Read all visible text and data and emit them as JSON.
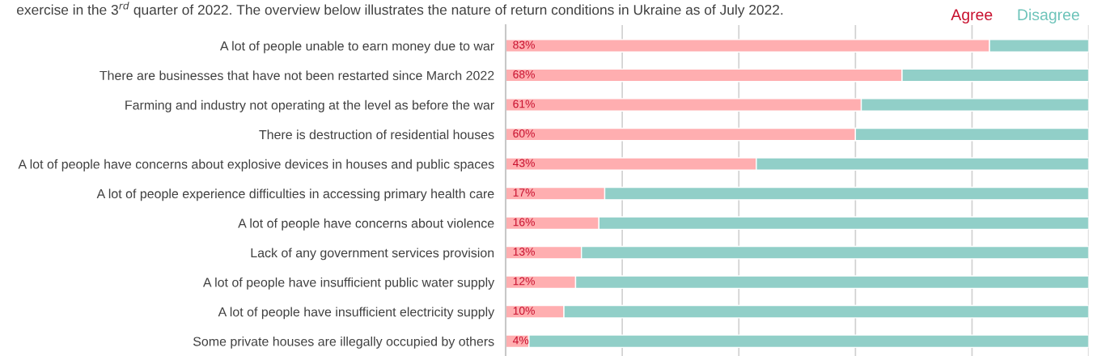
{
  "chart_data": {
    "type": "bar",
    "orientation": "horizontal",
    "stacked": true,
    "subtitle": "exercise in the 3$^{rd}$ quarter of 2022. The overview below illustrates the nature of return conditions in Ukraine as of July 2022.",
    "categories": [
      "A lot of people unable to earn money due to war",
      "There are businesses that have not been restarted since March 2022",
      "Farming and industry not operating at the level as before the war",
      "There is destruction of residential houses",
      "A lot of people have concerns about explosive devices in houses and public spaces",
      "A lot of people experience difficulties in accessing primary health care",
      "A lot of people have concerns about violence",
      "Lack of any government services provision",
      "A lot of people have insufficient public water supply",
      "A lot of people have insufficient electricity supply",
      "Some private houses are illegally occupied by others"
    ],
    "series": [
      {
        "name": "Agree",
        "color": "#ffaeb0",
        "values": [
          83,
          68,
          61,
          60,
          43,
          17,
          16,
          13,
          12,
          10,
          4
        ],
        "value_labels": [
          "83%",
          "68%",
          "61%",
          "60%",
          "43%",
          "17%",
          "16%",
          "13%",
          "12%",
          "10%",
          "4%"
        ]
      },
      {
        "name": "Disagree",
        "color": "#91cfc8",
        "values": [
          17,
          32,
          39,
          40,
          57,
          83,
          84,
          87,
          88,
          90,
          96
        ]
      }
    ],
    "xlim": [
      0,
      100
    ],
    "xticks": [
      {
        "value": 0,
        "label": null
      },
      {
        "value": 20,
        "label": null
      },
      {
        "value": 40,
        "label": null
      },
      {
        "value": 60,
        "label": null
      },
      {
        "value": 80,
        "label": null
      },
      {
        "value": 100,
        "label": null
      }
    ],
    "tick_labels": "y",
    "grid": "x",
    "legend": "top right"
  }
}
